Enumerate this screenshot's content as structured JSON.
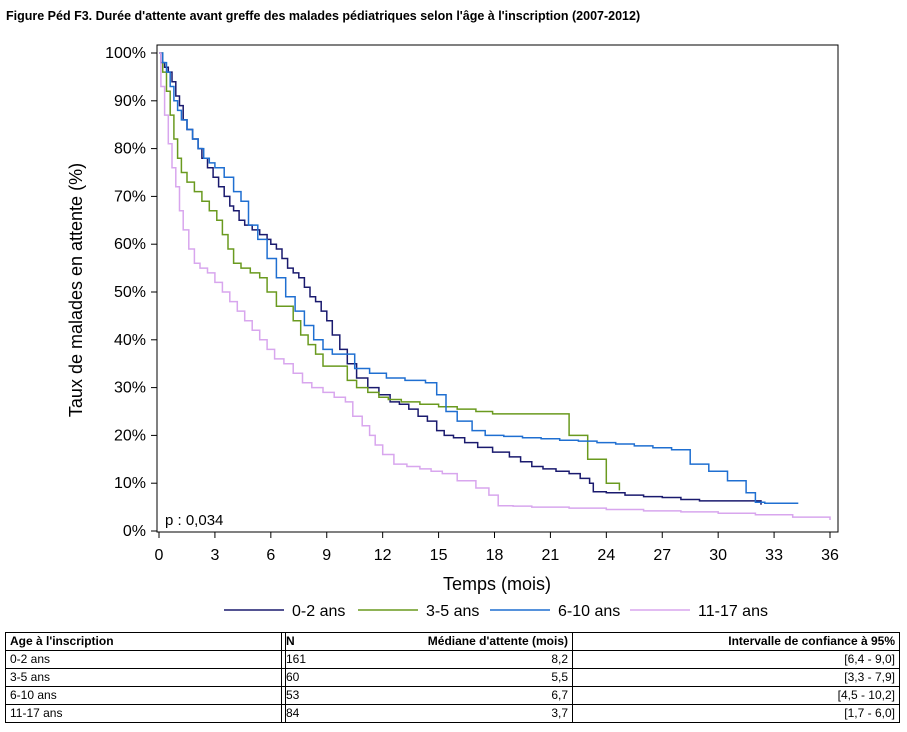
{
  "title": "Figure Péd F3. Durée d'attente avant greffe des malades pédiatriques selon l'âge à l'inscription  (2007-2012)",
  "chart_data": {
    "type": "line",
    "subtype": "step",
    "xlabel": "Temps (mois)",
    "ylabel": "Taux de malades en attente (%)",
    "xlim": [
      0,
      36
    ],
    "ylim": [
      0,
      100
    ],
    "x_ticks": [
      0,
      3,
      6,
      9,
      12,
      15,
      18,
      21,
      24,
      27,
      30,
      33,
      36
    ],
    "y_ticks": [
      0,
      10,
      20,
      30,
      40,
      50,
      60,
      70,
      80,
      90,
      100
    ],
    "y_tick_labels": [
      "0%",
      "10%",
      "20%",
      "30%",
      "40%",
      "50%",
      "60%",
      "70%",
      "80%",
      "90%",
      "100%"
    ],
    "annotation": "p : 0,034",
    "grid": false,
    "legend_position": "bottom",
    "series": [
      {
        "name": "0-2 ans",
        "color": "#1a1a6e",
        "x": [
          0,
          0.1,
          0.3,
          0.5,
          0.7,
          0.9,
          1.1,
          1.3,
          1.5,
          1.8,
          2.1,
          2.3,
          2.6,
          2.9,
          3.2,
          3.5,
          3.8,
          4.0,
          4.3,
          4.6,
          5.0,
          5.4,
          5.8,
          6.0,
          6.3,
          6.6,
          6.9,
          7.2,
          7.5,
          7.8,
          8.1,
          8.4,
          8.7,
          9.0,
          9.3,
          9.7,
          10.1,
          10.6,
          11.2,
          11.8,
          12.4,
          12.9,
          13.4,
          13.9,
          14.4,
          14.9,
          15.3,
          15.8,
          16.4,
          17.1,
          17.9,
          18.8,
          19.4,
          20.0,
          20.6,
          21.3,
          22.0,
          22.6,
          23.1,
          23.3,
          24.0,
          25.0,
          26.0,
          27.0,
          28.0,
          29.0,
          30.0,
          31.0,
          32.0,
          32.3
        ],
        "values": [
          100,
          98,
          97,
          96,
          94,
          91,
          89,
          86,
          84,
          82,
          80,
          78,
          76,
          74,
          72,
          70,
          68,
          67,
          65,
          64,
          63,
          62,
          61,
          60,
          59,
          57,
          55,
          54,
          53,
          51,
          49,
          48,
          46,
          44,
          41,
          38,
          35,
          32,
          30,
          28.5,
          27,
          26.5,
          25.5,
          24,
          23,
          21,
          20,
          19.5,
          18.5,
          17.5,
          16.5,
          15.5,
          14.5,
          13.5,
          13,
          12.5,
          12,
          11,
          10,
          8.2,
          8,
          7.5,
          7.2,
          7,
          6.6,
          6.3,
          6.3,
          6.3,
          6.3,
          5.5
        ]
      },
      {
        "name": "3-5 ans",
        "color": "#6a9a1f",
        "x": [
          0,
          0.2,
          0.4,
          0.6,
          0.8,
          1.0,
          1.2,
          1.5,
          1.9,
          2.3,
          2.7,
          3.1,
          3.4,
          3.7,
          4.0,
          4.4,
          4.9,
          5.4,
          5.8,
          6.3,
          6.8,
          7.2,
          7.6,
          8.0,
          8.4,
          8.8,
          9.4,
          10.1,
          10.6,
          11.2,
          11.8,
          12.3,
          13.0,
          14.0,
          15.0,
          16.0,
          17.0,
          17.9,
          18.5,
          19.5,
          20.5,
          21.3,
          22.0,
          23.0,
          24.0,
          24.7
        ],
        "values": [
          100,
          96,
          92,
          87,
          82,
          78,
          75,
          73,
          71,
          69,
          67,
          65,
          62,
          59,
          56,
          55,
          54,
          53,
          50,
          47,
          47,
          44,
          41,
          39,
          37,
          34.5,
          34.5,
          31.5,
          30,
          29,
          28,
          27.5,
          27,
          26.5,
          26,
          25.5,
          25,
          24.5,
          24.5,
          24.5,
          24.5,
          24.5,
          20,
          15,
          10,
          8.5
        ]
      },
      {
        "name": "6-10 ans",
        "color": "#1f6fd1",
        "x": [
          0,
          0.2,
          0.4,
          0.6,
          0.8,
          1.0,
          1.2,
          1.5,
          1.8,
          2.1,
          2.4,
          2.7,
          3.0,
          3.5,
          4.0,
          4.4,
          4.8,
          5.3,
          5.8,
          6.3,
          6.8,
          7.3,
          7.8,
          8.3,
          8.8,
          9.3,
          10.0,
          10.5,
          11.3,
          12.2,
          13.2,
          14.3,
          14.9,
          15.4,
          16.0,
          16.8,
          17.5,
          18.5,
          19.5,
          20.5,
          21.5,
          22.5,
          23.5,
          24.5,
          25.5,
          26.5,
          27.5,
          28.5,
          29.5,
          30.5,
          31.5,
          32.0,
          32.5,
          33.5,
          34.3
        ],
        "values": [
          100,
          98,
          96,
          93,
          90,
          88,
          86,
          84,
          82,
          80,
          78,
          77,
          76,
          74,
          71,
          69,
          64,
          61,
          57,
          53,
          49,
          46,
          43,
          40,
          38,
          37,
          37,
          34,
          33,
          32,
          31.5,
          31,
          28.5,
          25,
          23,
          21,
          20,
          19.8,
          19.5,
          19.3,
          19,
          18.8,
          18.5,
          18.2,
          17.8,
          17.4,
          17,
          14,
          12.5,
          10.5,
          8,
          6,
          5.8,
          5.8,
          5.8
        ]
      },
      {
        "name": "11-17 ans",
        "color": "#d8a6ee",
        "x": [
          0,
          0.1,
          0.3,
          0.5,
          0.7,
          0.9,
          1.1,
          1.3,
          1.6,
          1.9,
          2.2,
          2.6,
          3.0,
          3.4,
          3.8,
          4.2,
          4.6,
          5.0,
          5.4,
          5.8,
          6.2,
          6.7,
          7.2,
          7.7,
          8.2,
          8.8,
          9.4,
          10.0,
          10.4,
          10.9,
          11.3,
          11.6,
          12.0,
          12.6,
          13.3,
          14.0,
          14.6,
          15.2,
          16.0,
          17.0,
          17.7,
          18.2,
          19.0,
          20.0,
          22.0,
          24.0,
          26.0,
          28.0,
          30.0,
          32.0,
          34.0,
          36.0
        ],
        "values": [
          100,
          93,
          87,
          81,
          76,
          72,
          67,
          63,
          59,
          56,
          55,
          54,
          52,
          50,
          48,
          46,
          44,
          42,
          40,
          38,
          36,
          35,
          33,
          31,
          30,
          29,
          28,
          27,
          24,
          22,
          20,
          18,
          16,
          14,
          13.5,
          13,
          12.5,
          12,
          10.5,
          9,
          7.5,
          5.3,
          5.2,
          5,
          4.8,
          4.5,
          4.2,
          4,
          3.7,
          3.4,
          2.9,
          2.3
        ]
      }
    ]
  },
  "table": {
    "headers": [
      "Age à l'inscription",
      "N",
      "Médiane d'attente (mois)",
      "Intervalle de confiance à 95%"
    ],
    "rows": [
      [
        "0-2 ans",
        "161",
        "8,2",
        "[6,4 - 9,0]"
      ],
      [
        "3-5 ans",
        "60",
        "5,5",
        "[3,3 - 7,9]"
      ],
      [
        "6-10 ans",
        "53",
        "6,7",
        "[4,5 - 10,2]"
      ],
      [
        "11-17 ans",
        "84",
        "3,7",
        "[1,7 - 6,0]"
      ]
    ]
  }
}
